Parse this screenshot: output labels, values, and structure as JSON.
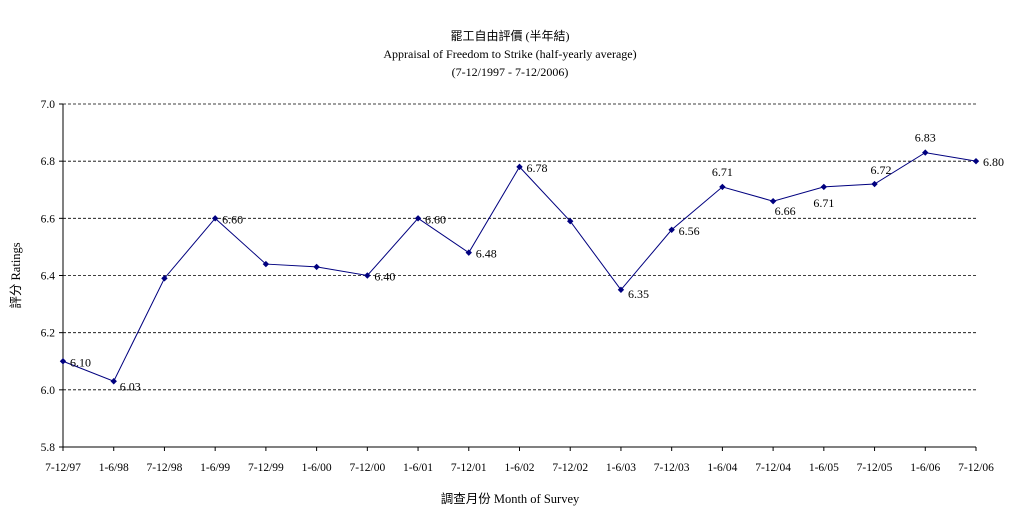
{
  "chart_data": {
    "type": "line",
    "title_zh": "罷工自由評價 (半年結)",
    "title": "Appraisal of Freedom to Strike (half-yearly average)",
    "subtitle": "(7-12/1997 - 7-12/2006)",
    "xlabel": "調查月份 Month of Survey",
    "ylabel": "評分 Ratings",
    "ylim": [
      5.8,
      7.0
    ],
    "yticks": [
      "5.8",
      "6.0",
      "6.2",
      "6.4",
      "6.6",
      "6.8",
      "7.0"
    ],
    "grid": "horizontal dashed",
    "legend": "none",
    "colors": {
      "line": "#00007f",
      "marker": "#00007f",
      "grid": "#000000"
    },
    "categories": [
      "7-12/97",
      "1-6/98",
      "7-12/98",
      "1-6/99",
      "7-12/99",
      "1-6/00",
      "7-12/00",
      "1-6/01",
      "7-12/01",
      "1-6/02",
      "7-12/02",
      "1-6/03",
      "7-12/03",
      "1-6/04",
      "7-12/04",
      "1-6/05",
      "7-12/05",
      "1-6/06",
      "7-12/06"
    ],
    "series": [
      {
        "values": [
          6.1,
          6.03,
          6.39,
          6.6,
          6.44,
          6.43,
          6.4,
          6.6,
          6.48,
          6.78,
          6.59,
          6.35,
          6.56,
          6.71,
          6.66,
          6.71,
          6.72,
          6.83,
          6.8
        ],
        "data_labels": [
          "6.10",
          "6.03",
          "",
          "6.60",
          "",
          "",
          "6.40",
          "6.60",
          "6.48",
          "6.78",
          "",
          "6.35",
          "6.56",
          "6.71",
          "6.66",
          "6.71",
          "6.72",
          "6.83",
          "6.80"
        ]
      }
    ]
  }
}
